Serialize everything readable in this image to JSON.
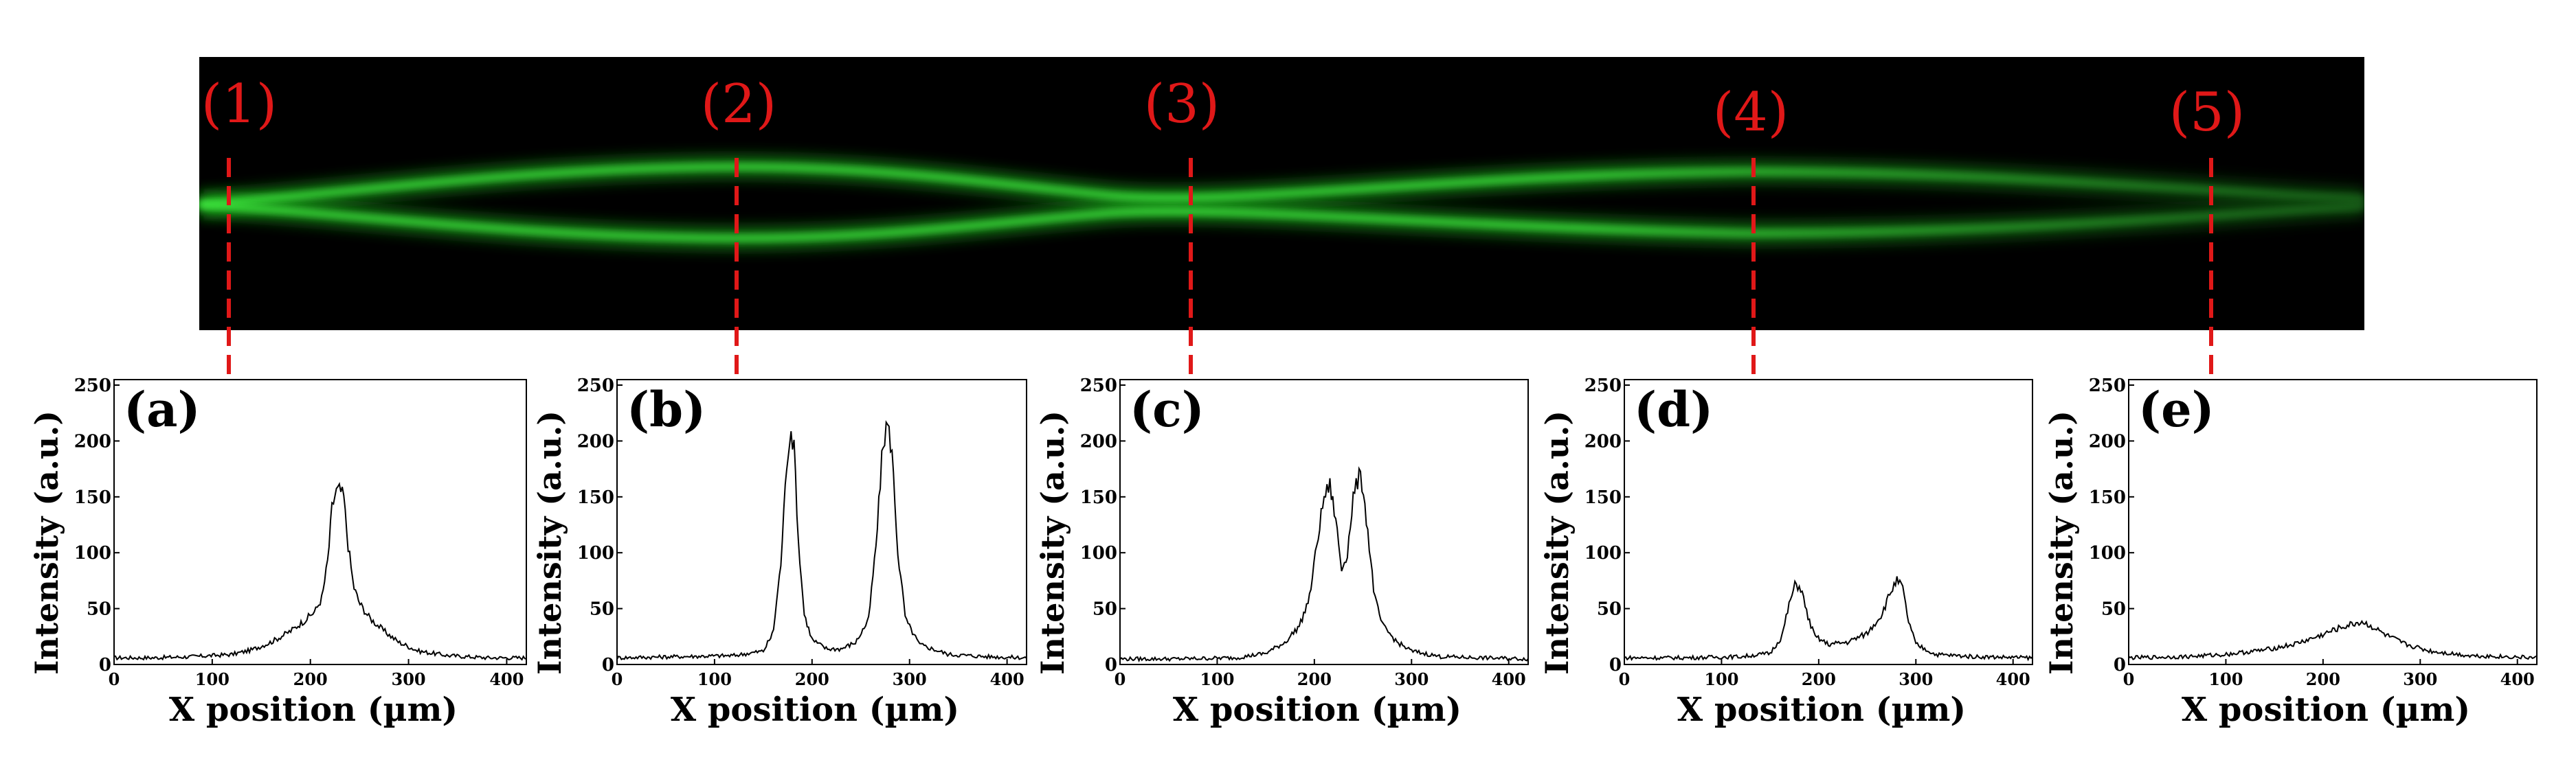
{
  "image_strip": {
    "background": "#000000",
    "beam_color": "#22cc22",
    "positions": [
      "(1)",
      "(2)",
      "(3)",
      "(4)",
      "(5)"
    ],
    "marker_color": "#e01818"
  },
  "chart_data": [
    {
      "type": "line",
      "panel_label": "(a)",
      "xlabel": "X position (µm)",
      "ylabel": "Intensity (a.u.)",
      "xlim": [
        0,
        420
      ],
      "ylim": [
        0,
        250
      ],
      "xticks": [
        0,
        100,
        200,
        300,
        400
      ],
      "yticks": [
        0,
        50,
        100,
        150,
        200,
        250
      ],
      "series": [
        {
          "x": [
            0,
            40,
            80,
            120,
            140,
            160,
            180,
            195,
            205,
            212,
            218,
            222,
            226,
            230,
            234,
            238,
            244,
            250,
            260,
            275,
            290,
            310,
            340,
            380,
            420
          ],
          "values": [
            6,
            6,
            7,
            9,
            13,
            20,
            30,
            40,
            48,
            60,
            95,
            140,
            155,
            156,
            150,
            110,
            70,
            55,
            42,
            30,
            20,
            12,
            8,
            6,
            6
          ]
        }
      ]
    },
    {
      "type": "line",
      "panel_label": "(b)",
      "xlabel": "X position (µm)",
      "ylabel": "Intensity (a.u.)",
      "xlim": [
        0,
        420
      ],
      "ylim": [
        0,
        250
      ],
      "xticks": [
        0,
        100,
        200,
        300,
        400
      ],
      "yticks": [
        0,
        50,
        100,
        150,
        200,
        250
      ],
      "series": [
        {
          "x": [
            0,
            60,
            120,
            150,
            160,
            168,
            174,
            178,
            182,
            186,
            192,
            200,
            215,
            230,
            245,
            258,
            266,
            272,
            277,
            282,
            288,
            296,
            310,
            340,
            380,
            420
          ],
          "values": [
            6,
            7,
            8,
            12,
            28,
            90,
            180,
            212,
            190,
            110,
            45,
            22,
            14,
            14,
            20,
            40,
            110,
            190,
            218,
            190,
            100,
            40,
            18,
            9,
            7,
            6
          ]
        }
      ]
    },
    {
      "type": "line",
      "panel_label": "(c)",
      "xlabel": "X position (µm)",
      "ylabel": "Intensity (a.u.)",
      "xlim": [
        0,
        420
      ],
      "ylim": [
        0,
        250
      ],
      "xticks": [
        0,
        100,
        200,
        300,
        400
      ],
      "yticks": [
        0,
        50,
        100,
        150,
        200,
        250
      ],
      "series": [
        {
          "x": [
            0,
            60,
            120,
            150,
            170,
            185,
            195,
            203,
            210,
            216,
            222,
            228,
            234,
            240,
            246,
            250,
            256,
            262,
            270,
            285,
            300,
            330,
            370,
            420
          ],
          "values": [
            5,
            5,
            6,
            10,
            20,
            35,
            60,
            110,
            150,
            160,
            130,
            85,
            100,
            150,
            168,
            160,
            110,
            60,
            35,
            20,
            12,
            7,
            6,
            5
          ]
        }
      ]
    },
    {
      "type": "line",
      "panel_label": "(d)",
      "xlabel": "X position (µm)",
      "ylabel": "Intensity (a.u.)",
      "xlim": [
        0,
        420
      ],
      "ylim": [
        0,
        250
      ],
      "xticks": [
        0,
        100,
        200,
        300,
        400
      ],
      "yticks": [
        0,
        50,
        100,
        150,
        200,
        250
      ],
      "series": [
        {
          "x": [
            0,
            60,
            120,
            150,
            162,
            170,
            176,
            182,
            188,
            196,
            210,
            230,
            250,
            265,
            274,
            280,
            286,
            292,
            300,
            320,
            360,
            420
          ],
          "values": [
            6,
            6,
            7,
            10,
            25,
            55,
            72,
            68,
            45,
            25,
            18,
            20,
            28,
            45,
            65,
            75,
            70,
            40,
            18,
            9,
            7,
            6
          ]
        }
      ]
    },
    {
      "type": "line",
      "panel_label": "(e)",
      "xlabel": "X position (µm)",
      "ylabel": "Intensity (a.u.)",
      "xlim": [
        0,
        420
      ],
      "ylim": [
        0,
        250
      ],
      "xticks": [
        0,
        100,
        200,
        300,
        400
      ],
      "yticks": [
        0,
        50,
        100,
        150,
        200,
        250
      ],
      "series": [
        {
          "x": [
            0,
            60,
            100,
            140,
            170,
            195,
            215,
            230,
            240,
            250,
            265,
            285,
            310,
            350,
            420
          ],
          "values": [
            6,
            7,
            9,
            13,
            18,
            25,
            32,
            36,
            38,
            34,
            26,
            18,
            12,
            8,
            6
          ]
        }
      ]
    }
  ]
}
